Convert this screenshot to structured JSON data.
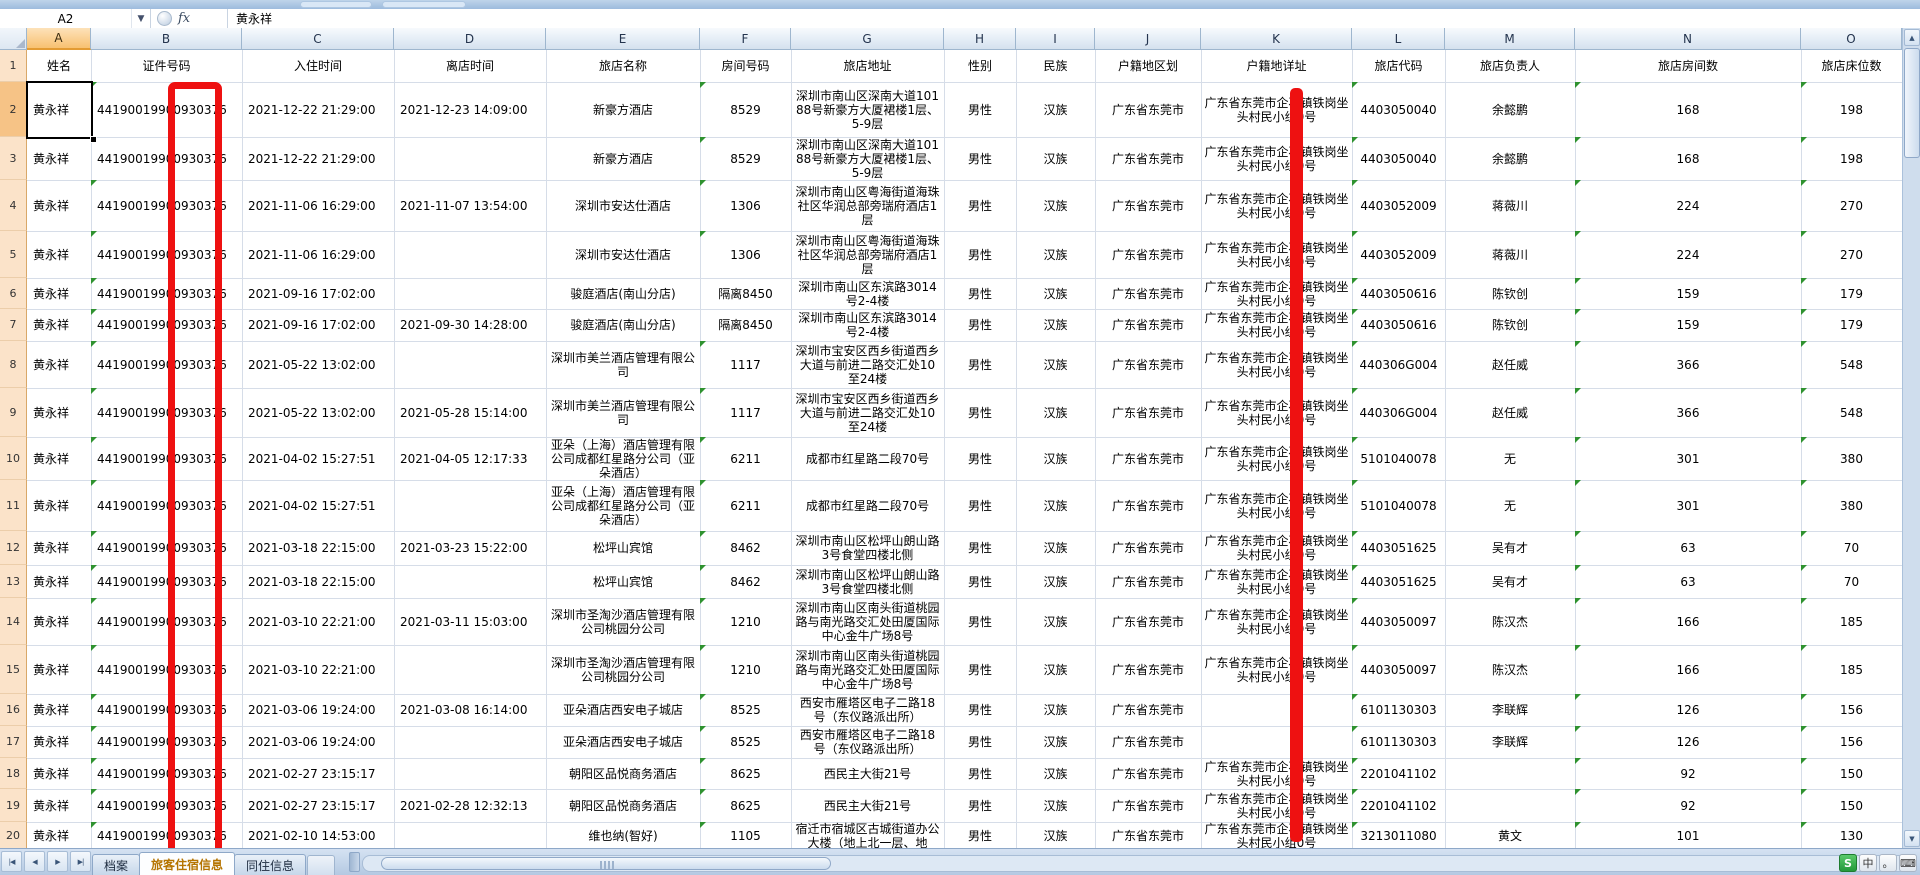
{
  "app": {
    "name_box": "A2",
    "fx_label": "fx",
    "formula_value": "黄永祥"
  },
  "grid": {
    "columns": [
      {
        "letter": "A",
        "header": "姓名"
      },
      {
        "letter": "B",
        "header": "证件号码"
      },
      {
        "letter": "C",
        "header": "入住时间"
      },
      {
        "letter": "D",
        "header": "离店时间"
      },
      {
        "letter": "E",
        "header": "旅店名称"
      },
      {
        "letter": "F",
        "header": "房间号码"
      },
      {
        "letter": "G",
        "header": "旅店地址"
      },
      {
        "letter": "H",
        "header": "性别"
      },
      {
        "letter": "I",
        "header": "民族"
      },
      {
        "letter": "J",
        "header": "户籍地区划"
      },
      {
        "letter": "K",
        "header": "户籍地详址"
      },
      {
        "letter": "L",
        "header": "旅店代码"
      },
      {
        "letter": "M",
        "header": "旅店负责人"
      },
      {
        "letter": "N",
        "header": "旅店房间数"
      },
      {
        "letter": "O",
        "header": "旅店床位数"
      }
    ],
    "flagged_columns": [
      "B",
      "F",
      "L",
      "N",
      "O"
    ],
    "selection": "A2",
    "rows": [
      {
        "n": 2,
        "cells": [
          "黄永祥",
          "44190019900930376",
          "2021-12-22 21:29:00",
          "2021-12-23 14:09:00",
          "新豪方酒店",
          "8529",
          "深圳市南山区深南大道10188号新豪方大厦裙楼1层、5-9层",
          "男性",
          "汉族",
          "广东省东莞市",
          "广东省东莞市企石镇铁岗坐头村民小组0号",
          "4403050040",
          "余懿鹏",
          "168",
          "198"
        ]
      },
      {
        "n": 3,
        "cells": [
          "黄永祥",
          "44190019900930376",
          "2021-12-22 21:29:00",
          "",
          "新豪方酒店",
          "8529",
          "深圳市南山区深南大道10188号新豪方大厦裙楼1层、5-9层",
          "男性",
          "汉族",
          "广东省东莞市",
          "广东省东莞市企石镇铁岗坐头村民小组0号",
          "4403050040",
          "余懿鹏",
          "168",
          "198"
        ]
      },
      {
        "n": 4,
        "cells": [
          "黄永祥",
          "44190019900930376",
          "2021-11-06 16:29:00",
          "2021-11-07 13:54:00",
          "深圳市安达仕酒店",
          "1306",
          "深圳市南山区粤海街道海珠社区华润总部旁瑞府酒店1层",
          "男性",
          "汉族",
          "广东省东莞市",
          "广东省东莞市企石镇铁岗坐头村民小组0号",
          "4403052009",
          "蒋薇川",
          "224",
          "270"
        ]
      },
      {
        "n": 5,
        "cells": [
          "黄永祥",
          "44190019900930376",
          "2021-11-06 16:29:00",
          "",
          "深圳市安达仕酒店",
          "1306",
          "深圳市南山区粤海街道海珠社区华润总部旁瑞府酒店1层",
          "男性",
          "汉族",
          "广东省东莞市",
          "广东省东莞市企石镇铁岗坐头村民小组0号",
          "4403052009",
          "蒋薇川",
          "224",
          "270"
        ]
      },
      {
        "n": 6,
        "cells": [
          "黄永祥",
          "44190019900930376",
          "2021-09-16 17:02:00",
          "",
          "骏庭酒店(南山分店)",
          "隔离8450",
          "深圳市南山区东滨路3014号2-4楼",
          "男性",
          "汉族",
          "广东省东莞市",
          "广东省东莞市企石镇铁岗坐头村民小组0号",
          "4403050616",
          "陈钦创",
          "159",
          "179"
        ]
      },
      {
        "n": 7,
        "cells": [
          "黄永祥",
          "44190019900930376",
          "2021-09-16 17:02:00",
          "2021-09-30 14:28:00",
          "骏庭酒店(南山分店)",
          "隔离8450",
          "深圳市南山区东滨路3014号2-4楼",
          "男性",
          "汉族",
          "广东省东莞市",
          "广东省东莞市企石镇铁岗坐头村民小组0号",
          "4403050616",
          "陈钦创",
          "159",
          "179"
        ]
      },
      {
        "n": 8,
        "cells": [
          "黄永祥",
          "44190019900930376",
          "2021-05-22 13:02:00",
          "",
          "深圳市美兰酒店管理有限公司",
          "1117",
          "深圳市宝安区西乡街道西乡大道与前进二路交汇处10至24楼",
          "男性",
          "汉族",
          "广东省东莞市",
          "广东省东莞市企石镇铁岗坐头村民小组0号",
          "440306G004",
          "赵任威",
          "366",
          "548"
        ]
      },
      {
        "n": 9,
        "cells": [
          "黄永祥",
          "44190019900930376",
          "2021-05-22 13:02:00",
          "2021-05-28 15:14:00",
          "深圳市美兰酒店管理有限公司",
          "1117",
          "深圳市宝安区西乡街道西乡大道与前进二路交汇处10至24楼",
          "男性",
          "汉族",
          "广东省东莞市",
          "广东省东莞市企石镇铁岗坐头村民小组0号",
          "440306G004",
          "赵任威",
          "366",
          "548"
        ]
      },
      {
        "n": 10,
        "cells": [
          "黄永祥",
          "44190019900930376",
          "2021-04-02 15:27:51",
          "2021-04-05 12:17:33",
          "亚朵（上海）酒店管理有限公司成都红星路分公司（亚朵酒店）",
          "6211",
          "成都市红星路二段70号",
          "男性",
          "汉族",
          "广东省东莞市",
          "广东省东莞市企石镇铁岗坐头村民小组0号",
          "5101040078",
          "无",
          "301",
          "380"
        ]
      },
      {
        "n": 11,
        "cells": [
          "黄永祥",
          "44190019900930376",
          "2021-04-02 15:27:51",
          "",
          "亚朵（上海）酒店管理有限公司成都红星路分公司（亚朵酒店）",
          "6211",
          "成都市红星路二段70号",
          "男性",
          "汉族",
          "广东省东莞市",
          "广东省东莞市企石镇铁岗坐头村民小组0号",
          "5101040078",
          "无",
          "301",
          "380"
        ]
      },
      {
        "n": 12,
        "cells": [
          "黄永祥",
          "44190019900930376",
          "2021-03-18 22:15:00",
          "2021-03-23 15:22:00",
          "松坪山宾馆",
          "8462",
          "深圳市南山区松坪山朗山路3号食堂四楼北侧",
          "男性",
          "汉族",
          "广东省东莞市",
          "广东省东莞市企石镇铁岗坐头村民小组0号",
          "4403051625",
          "吴有才",
          "63",
          "70"
        ]
      },
      {
        "n": 13,
        "cells": [
          "黄永祥",
          "44190019900930376",
          "2021-03-18 22:15:00",
          "",
          "松坪山宾馆",
          "8462",
          "深圳市南山区松坪山朗山路3号食堂四楼北侧",
          "男性",
          "汉族",
          "广东省东莞市",
          "广东省东莞市企石镇铁岗坐头村民小组0号",
          "4403051625",
          "吴有才",
          "63",
          "70"
        ]
      },
      {
        "n": 14,
        "cells": [
          "黄永祥",
          "44190019900930376",
          "2021-03-10 22:21:00",
          "2021-03-11 15:03:00",
          "深圳市圣淘沙酒店管理有限公司桃园分公司",
          "1210",
          "深圳市南山区南头街道桃园路与南光路交汇处田厦国际中心金牛广场8号",
          "男性",
          "汉族",
          "广东省东莞市",
          "广东省东莞市企石镇铁岗坐头村民小组0号",
          "4403050097",
          "陈汉杰",
          "166",
          "185"
        ]
      },
      {
        "n": 15,
        "cells": [
          "黄永祥",
          "44190019900930376",
          "2021-03-10 22:21:00",
          "",
          "深圳市圣淘沙酒店管理有限公司桃园分公司",
          "1210",
          "深圳市南山区南头街道桃园路与南光路交汇处田厦国际中心金牛广场8号",
          "男性",
          "汉族",
          "广东省东莞市",
          "广东省东莞市企石镇铁岗坐头村民小组0号",
          "4403050097",
          "陈汉杰",
          "166",
          "185"
        ]
      },
      {
        "n": 16,
        "cells": [
          "黄永祥",
          "44190019900930376",
          "2021-03-06 19:24:00",
          "2021-03-08 16:14:00",
          "亚朵酒店西安电子城店",
          "8525",
          "西安市雁塔区电子二路18号（东仪路派出所）",
          "男性",
          "汉族",
          "广东省东莞市",
          "",
          "6101130303",
          "李联辉",
          "126",
          "156"
        ]
      },
      {
        "n": 17,
        "cells": [
          "黄永祥",
          "44190019900930376",
          "2021-03-06 19:24:00",
          "",
          "亚朵酒店西安电子城店",
          "8525",
          "西安市雁塔区电子二路18号（东仪路派出所）",
          "男性",
          "汉族",
          "广东省东莞市",
          "",
          "6101130303",
          "李联辉",
          "126",
          "156"
        ]
      },
      {
        "n": 18,
        "cells": [
          "黄永祥",
          "44190019900930376",
          "2021-02-27 23:15:17",
          "",
          "朝阳区品悦商务酒店",
          "8625",
          "西民主大街21号",
          "男性",
          "汉族",
          "广东省东莞市",
          "广东省东莞市企石镇铁岗坐头村民小组0号",
          "2201041102",
          "",
          "92",
          "150"
        ]
      },
      {
        "n": 19,
        "cells": [
          "黄永祥",
          "44190019900930376",
          "2021-02-27 23:15:17",
          "2021-02-28 12:32:13",
          "朝阳区品悦商务酒店",
          "8625",
          "西民主大街21号",
          "男性",
          "汉族",
          "广东省东莞市",
          "广东省东莞市企石镇铁岗坐头村民小组0号",
          "2201041102",
          "",
          "92",
          "150"
        ]
      },
      {
        "n": 20,
        "cells": [
          "黄永祥",
          "44190019900930376",
          "2021-02-10 14:53:00",
          "",
          "维也纳(智好)",
          "1105",
          "宿迁市宿城区古城街道办公大楼（地上北一层、地",
          "男性",
          "汉族",
          "广东省东莞市",
          "广东省东莞市企石镇铁岗坐头村民小组0号",
          "3213011080",
          "黄文",
          "101",
          "130"
        ]
      }
    ]
  },
  "annotations": {
    "color": "#ee1111",
    "marks": [
      {
        "shape": "rectangle-outline",
        "over": "证件号码 column B"
      },
      {
        "shape": "vertical-bar",
        "over": "户籍地详址 column K"
      }
    ]
  },
  "tabs": {
    "nav": [
      "|◀",
      "◀",
      "▶",
      "▶|"
    ],
    "items": [
      {
        "label": "档案",
        "active": false
      },
      {
        "label": "旅客住宿信息",
        "active": true
      },
      {
        "label": "同住信息",
        "active": false
      }
    ]
  },
  "scroll": {
    "v_up": "▲",
    "v_down": "▼"
  },
  "ime": {
    "icons": [
      "S",
      "中",
      "。",
      "⌨"
    ]
  }
}
